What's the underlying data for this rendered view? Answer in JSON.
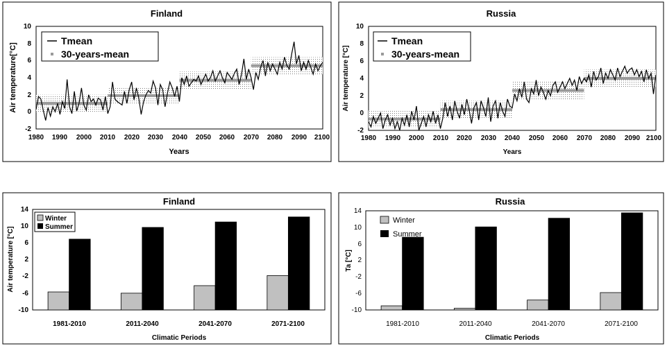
{
  "chart_data": [
    {
      "type": "line",
      "title": "Finland",
      "xlabel": "Years",
      "ylabel": "Air temperature[°C]",
      "xlim": [
        1980,
        2100
      ],
      "ylim": [
        -2,
        10
      ],
      "xticks": [
        "1980",
        "1990",
        "2000",
        "2010",
        "2020",
        "2030",
        "2040",
        "2050",
        "2060",
        "2070",
        "2080",
        "2090",
        "2100"
      ],
      "yticks": [
        "-2",
        "0",
        "2",
        "4",
        "6",
        "8",
        "10"
      ],
      "legend": [
        "Tmean",
        "30-years-mean"
      ],
      "legend_position": "top-left",
      "series": [
        {
          "name": "Tmean",
          "x": [
            1980,
            1981,
            1982,
            1983,
            1984,
            1985,
            1986,
            1987,
            1988,
            1989,
            1990,
            1991,
            1992,
            1993,
            1994,
            1995,
            1996,
            1997,
            1998,
            1999,
            2000,
            2001,
            2002,
            2003,
            2004,
            2005,
            2006,
            2007,
            2008,
            2009,
            2010,
            2011,
            2012,
            2013,
            2014,
            2015,
            2016,
            2017,
            2018,
            2019,
            2020,
            2021,
            2022,
            2023,
            2024,
            2025,
            2026,
            2027,
            2028,
            2029,
            2030,
            2031,
            2032,
            2033,
            2034,
            2035,
            2036,
            2037,
            2038,
            2039,
            2040,
            2041,
            2042,
            2043,
            2044,
            2045,
            2046,
            2047,
            2048,
            2049,
            2050,
            2051,
            2052,
            2053,
            2054,
            2055,
            2056,
            2057,
            2058,
            2059,
            2060,
            2061,
            2062,
            2063,
            2064,
            2065,
            2066,
            2067,
            2068,
            2069,
            2070,
            2071,
            2072,
            2073,
            2074,
            2075,
            2076,
            2077,
            2078,
            2079,
            2080,
            2081,
            2082,
            2083,
            2084,
            2085,
            2086,
            2087,
            2088,
            2089,
            2090,
            2091,
            2092,
            2093,
            2094,
            2095,
            2096,
            2097,
            2098,
            2099,
            2100
          ],
          "values": [
            0.3,
            1.8,
            1.5,
            0.2,
            -1.0,
            0.5,
            -0.5,
            0.6,
            0.0,
            1.0,
            -0.3,
            1.2,
            0.4,
            3.8,
            0.6,
            -0.2,
            2.4,
            0.1,
            1.0,
            2.8,
            0.8,
            0.2,
            2.0,
            1.2,
            1.5,
            0.8,
            1.6,
            1.4,
            0.2,
            1.8,
            -0.2,
            0.6,
            3.5,
            1.5,
            1.2,
            1.0,
            0.8,
            2.4,
            1.0,
            2.6,
            3.5,
            1.4,
            2.8,
            1.6,
            -0.3,
            1.2,
            2.0,
            2.5,
            2.2,
            3.6,
            2.8,
            0.8,
            3.2,
            2.6,
            0.6,
            2.2,
            3.5,
            2.8,
            1.8,
            3.0,
            1.2,
            4.0,
            3.2,
            4.2,
            3.0,
            3.4,
            3.8,
            3.6,
            4.2,
            3.2,
            3.8,
            4.4,
            3.6,
            4.0,
            4.8,
            3.6,
            4.2,
            4.8,
            4.0,
            3.4,
            4.6,
            4.2,
            3.8,
            4.5,
            5.0,
            3.2,
            4.4,
            6.2,
            3.8,
            5.0,
            4.0,
            2.6,
            4.6,
            3.8,
            5.2,
            6.0,
            4.2,
            5.8,
            4.8,
            5.6,
            5.0,
            4.4,
            5.8,
            5.0,
            6.4,
            5.4,
            5.0,
            6.8,
            8.2,
            5.6,
            6.6,
            4.8,
            5.8,
            5.0,
            6.0,
            5.2,
            4.4,
            5.6,
            4.8,
            5.4,
            5.8
          ]
        }
      ],
      "period_means": [
        {
          "period": "1981-2010",
          "mean": 1.0
        },
        {
          "period": "2011-2040",
          "mean": 1.9
        },
        {
          "period": "2041-2070",
          "mean": 3.7
        },
        {
          "period": "2071-2100",
          "mean": 5.4
        }
      ]
    },
    {
      "type": "line",
      "title": "Russia",
      "xlabel": "Years",
      "ylabel": "Air temperature [°C]",
      "xlim": [
        1980,
        2100
      ],
      "ylim": [
        -2,
        10
      ],
      "xticks": [
        "1980",
        "1990",
        "2000",
        "2010",
        "2020",
        "2030",
        "2040",
        "2050",
        "2060",
        "2070",
        "2080",
        "2090",
        "2100"
      ],
      "yticks": [
        "-2",
        "0",
        "2",
        "4",
        "6",
        "8",
        "10"
      ],
      "legend": [
        "Tmean",
        "30-years-mean"
      ],
      "legend_position": "top-left",
      "series": [
        {
          "name": "Tmean",
          "x": [
            1980,
            1981,
            1982,
            1983,
            1984,
            1985,
            1986,
            1987,
            1988,
            1989,
            1990,
            1991,
            1992,
            1993,
            1994,
            1995,
            1996,
            1997,
            1998,
            1999,
            2000,
            2001,
            2002,
            2003,
            2004,
            2005,
            2006,
            2007,
            2008,
            2009,
            2010,
            2011,
            2012,
            2013,
            2014,
            2015,
            2016,
            2017,
            2018,
            2019,
            2020,
            2021,
            2022,
            2023,
            2024,
            2025,
            2026,
            2027,
            2028,
            2029,
            2030,
            2031,
            2032,
            2033,
            2034,
            2035,
            2036,
            2037,
            2038,
            2039,
            2040,
            2041,
            2042,
            2043,
            2044,
            2045,
            2046,
            2047,
            2048,
            2049,
            2050,
            2051,
            2052,
            2053,
            2054,
            2055,
            2056,
            2057,
            2058,
            2059,
            2060,
            2061,
            2062,
            2063,
            2064,
            2065,
            2066,
            2067,
            2068,
            2069,
            2070,
            2071,
            2072,
            2073,
            2074,
            2075,
            2076,
            2077,
            2078,
            2079,
            2080,
            2081,
            2082,
            2083,
            2084,
            2085,
            2086,
            2087,
            2088,
            2089,
            2090,
            2091,
            2092,
            2093,
            2094,
            2095,
            2096,
            2097,
            2098,
            2099,
            2100
          ],
          "values": [
            -1.0,
            -1.6,
            -0.4,
            -1.2,
            -0.6,
            0.0,
            -1.8,
            -0.8,
            -0.2,
            -1.4,
            -0.6,
            -1.8,
            -1.0,
            -2.0,
            -0.6,
            -1.4,
            -0.2,
            -1.6,
            0.2,
            -0.8,
            0.8,
            -2.0,
            -1.2,
            -0.4,
            -1.6,
            -0.2,
            -1.0,
            0.2,
            -1.2,
            -0.2,
            -1.8,
            -0.6,
            1.2,
            -0.4,
            0.8,
            -0.8,
            1.4,
            0.2,
            -0.6,
            1.0,
            -0.2,
            1.6,
            0.4,
            -1.2,
            0.6,
            1.2,
            -0.8,
            1.4,
            0.6,
            -0.4,
            1.8,
            -1.0,
            0.8,
            1.4,
            -0.6,
            1.2,
            0.2,
            -0.4,
            1.6,
            0.8,
            0.6,
            2.2,
            1.4,
            2.8,
            1.8,
            3.6,
            1.6,
            1.2,
            2.8,
            2.2,
            3.8,
            2.0,
            3.0,
            2.4,
            1.6,
            2.6,
            2.0,
            3.2,
            3.6,
            2.4,
            3.0,
            3.6,
            2.8,
            3.4,
            4.0,
            3.2,
            3.8,
            2.6,
            4.2,
            3.4,
            4.0,
            3.6,
            4.4,
            3.0,
            4.8,
            3.8,
            4.2,
            5.2,
            3.4,
            4.6,
            4.0,
            5.0,
            4.4,
            3.8,
            5.2,
            4.2,
            4.8,
            5.4,
            4.6,
            5.0,
            5.2,
            4.4,
            5.0,
            4.2,
            4.8,
            3.6,
            5.0,
            4.0,
            4.6,
            2.2,
            4.4
          ]
        }
      ],
      "period_means": [
        {
          "period": "1981-2010",
          "mean": -0.7
        },
        {
          "period": "2011-2040",
          "mean": 0.4
        },
        {
          "period": "2041-2070",
          "mean": 2.6
        },
        {
          "period": "2071-2100",
          "mean": 4.0
        }
      ]
    },
    {
      "type": "bar",
      "title": "Finland",
      "xlabel": "Climatic Periods",
      "ylabel": "Air temperature [°C]",
      "ylim": [
        -10,
        14
      ],
      "yticks": [
        "-10",
        "-6",
        "-2",
        "2",
        "6",
        "10",
        "14"
      ],
      "categories": [
        "1981-2010",
        "2011-2040",
        "2041-2070",
        "2071-2100"
      ],
      "legend_position": "top-left",
      "series": [
        {
          "name": "Winter",
          "values": [
            -5.7,
            -6.0,
            -4.2,
            -1.8
          ],
          "color": "#c0c0c0"
        },
        {
          "name": "Summer",
          "values": [
            6.9,
            9.7,
            11.0,
            12.2
          ],
          "color": "#000000"
        }
      ]
    },
    {
      "type": "bar",
      "title": "Russia",
      "xlabel": "Climatic Periods",
      "ylabel": "Ta [°C]",
      "ylim": [
        -10,
        14
      ],
      "yticks": [
        "-10",
        "-6",
        "-2",
        "2",
        "6",
        "10",
        "14"
      ],
      "categories": [
        "1981-2010",
        "2011-2040",
        "2041-2070",
        "2071-2100"
      ],
      "legend_position": "top-left",
      "series": [
        {
          "name": "Winter",
          "values": [
            -9.0,
            -9.6,
            -7.6,
            -5.8
          ],
          "color": "#c0c0c0"
        },
        {
          "name": "Summer",
          "values": [
            7.6,
            10.1,
            12.2,
            13.5
          ],
          "color": "#000000"
        }
      ]
    }
  ]
}
